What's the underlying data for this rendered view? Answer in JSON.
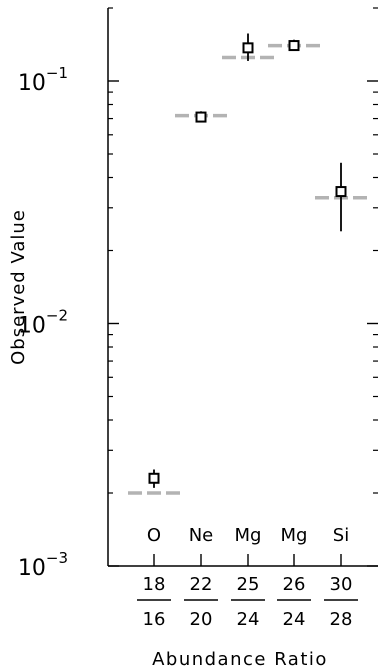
{
  "chart_data": {
    "type": "scatter",
    "title": "",
    "xlabel": "Abundance Ratio",
    "ylabel": "Observed Value",
    "yscale": "log",
    "ylim": [
      0.001,
      0.2
    ],
    "yticks": [
      {
        "base": "10",
        "exp": "−1",
        "value": 0.1
      },
      {
        "base": "10",
        "exp": "−2",
        "value": 0.01
      },
      {
        "base": "10",
        "exp": "−3",
        "value": 0.001
      }
    ],
    "categories": [
      {
        "element": "O",
        "numerator": "18",
        "denominator": "16"
      },
      {
        "element": "Ne",
        "numerator": "22",
        "denominator": "20"
      },
      {
        "element": "Mg",
        "numerator": "25",
        "denominator": "24"
      },
      {
        "element": "Mg",
        "numerator": "26",
        "denominator": "24"
      },
      {
        "element": "Si",
        "numerator": "30",
        "denominator": "28"
      }
    ],
    "series": [
      {
        "marker": "open-square",
        "color": "#000000",
        "values": [
          0.0023,
          0.071,
          0.137,
          0.14,
          0.035
        ],
        "err_low": [
          0.0021,
          0.068,
          0.121,
          0.133,
          0.024
        ],
        "err_high": [
          0.0025,
          0.075,
          0.157,
          0.148,
          0.046
        ]
      },
      {
        "marker": "dashed-line",
        "color": "#b3b3b3",
        "values": [
          0.002,
          0.072,
          0.125,
          0.14,
          0.033
        ]
      }
    ],
    "grid": false,
    "legend": "none"
  }
}
